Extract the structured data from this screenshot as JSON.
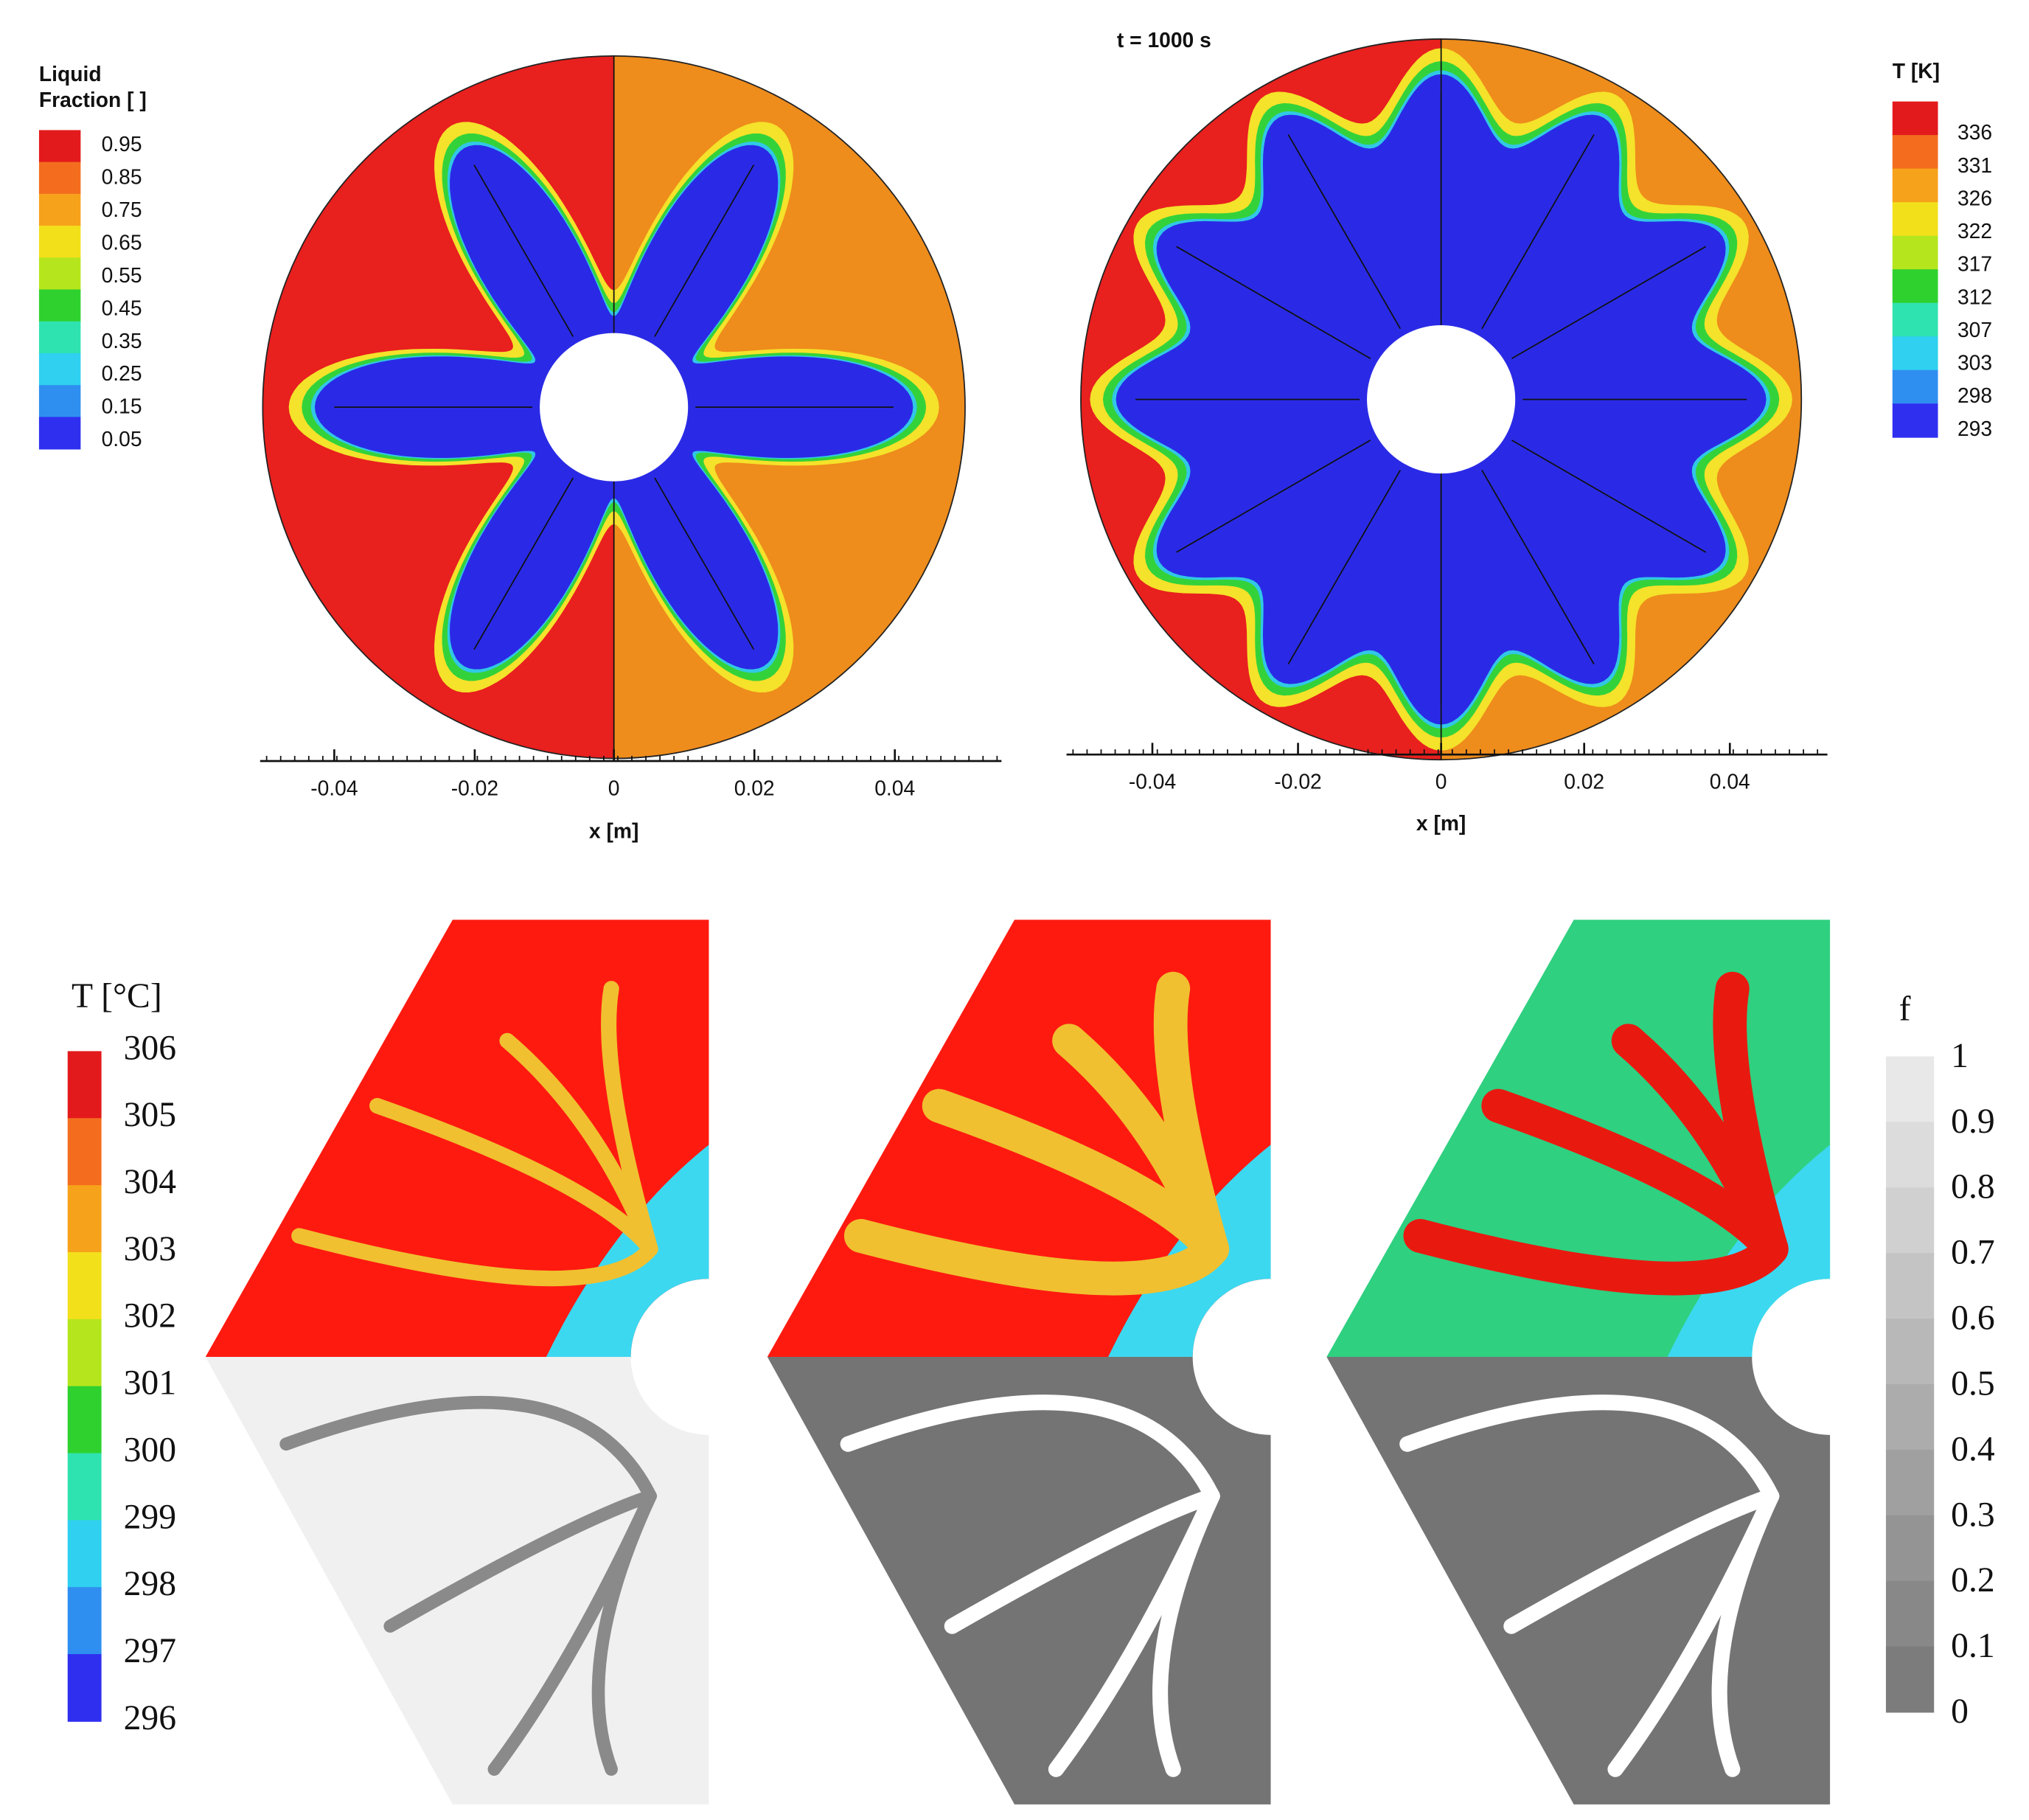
{
  "top_left": {
    "colorbar_title": [
      "Liquid",
      "Fraction [ ]"
    ],
    "colorbar_labels": [
      "0.95",
      "0.85",
      "0.75",
      "0.65",
      "0.55",
      "0.45",
      "0.35",
      "0.25",
      "0.15",
      "0.05"
    ],
    "x_ticks": [
      "-0.04",
      "-0.02",
      "0",
      "0.02",
      "0.04"
    ],
    "x_label": "x [m]"
  },
  "top_right": {
    "title": "t = 1000 s",
    "colorbar_title": "T [K]",
    "colorbar_labels": [
      "336",
      "331",
      "326",
      "322",
      "317",
      "312",
      "307",
      "303",
      "298",
      "293"
    ],
    "x_ticks": [
      "-0.04",
      "-0.02",
      "0",
      "0.02",
      "0.04"
    ],
    "x_label": "x [m]"
  },
  "bottom": {
    "left_colorbar_title": "T [°C]",
    "left_colorbar_labels": [
      "306",
      "305",
      "304",
      "303",
      "302",
      "301",
      "300",
      "299",
      "298",
      "297",
      "296"
    ],
    "right_colorbar_title": "f",
    "right_colorbar_labels": [
      "1",
      "0.9",
      "0.8",
      "0.7",
      "0.6",
      "0.5",
      "0.4",
      "0.3",
      "0.2",
      "0.1",
      "0"
    ]
  }
}
